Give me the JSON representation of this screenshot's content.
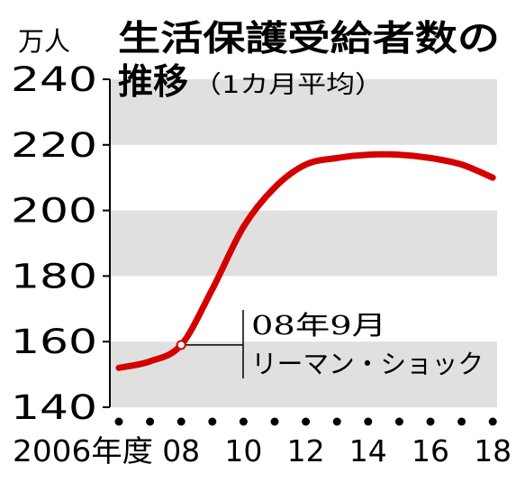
{
  "chart_data": {
    "type": "line",
    "title": "生活保護受給者数の",
    "title_line2": "推移",
    "subtitle": "（1カ月平均）",
    "ylabel": "万人",
    "x": [
      2006,
      2007,
      2008,
      2009,
      2010,
      2011,
      2012,
      2013,
      2014,
      2015,
      2016,
      2017,
      2018
    ],
    "x_tick_labels": [
      "2006年度",
      "08",
      "10",
      "12",
      "14",
      "16",
      "18"
    ],
    "y_tick_labels": [
      "240",
      "220",
      "200",
      "180",
      "160",
      "140"
    ],
    "ylim": [
      140,
      240
    ],
    "series": [
      {
        "values": [
          152,
          154,
          159,
          176,
          195,
          207,
          214,
          216,
          217,
          217,
          216,
          214,
          210
        ]
      }
    ],
    "annotation": {
      "x": 2008,
      "line1": "08年9月",
      "line2": "リーマン・ショック"
    },
    "colors": {
      "line": "#d40000",
      "band": "#e0e0e0",
      "axis": "#000000"
    },
    "grid": "alternating horizontal bands"
  }
}
